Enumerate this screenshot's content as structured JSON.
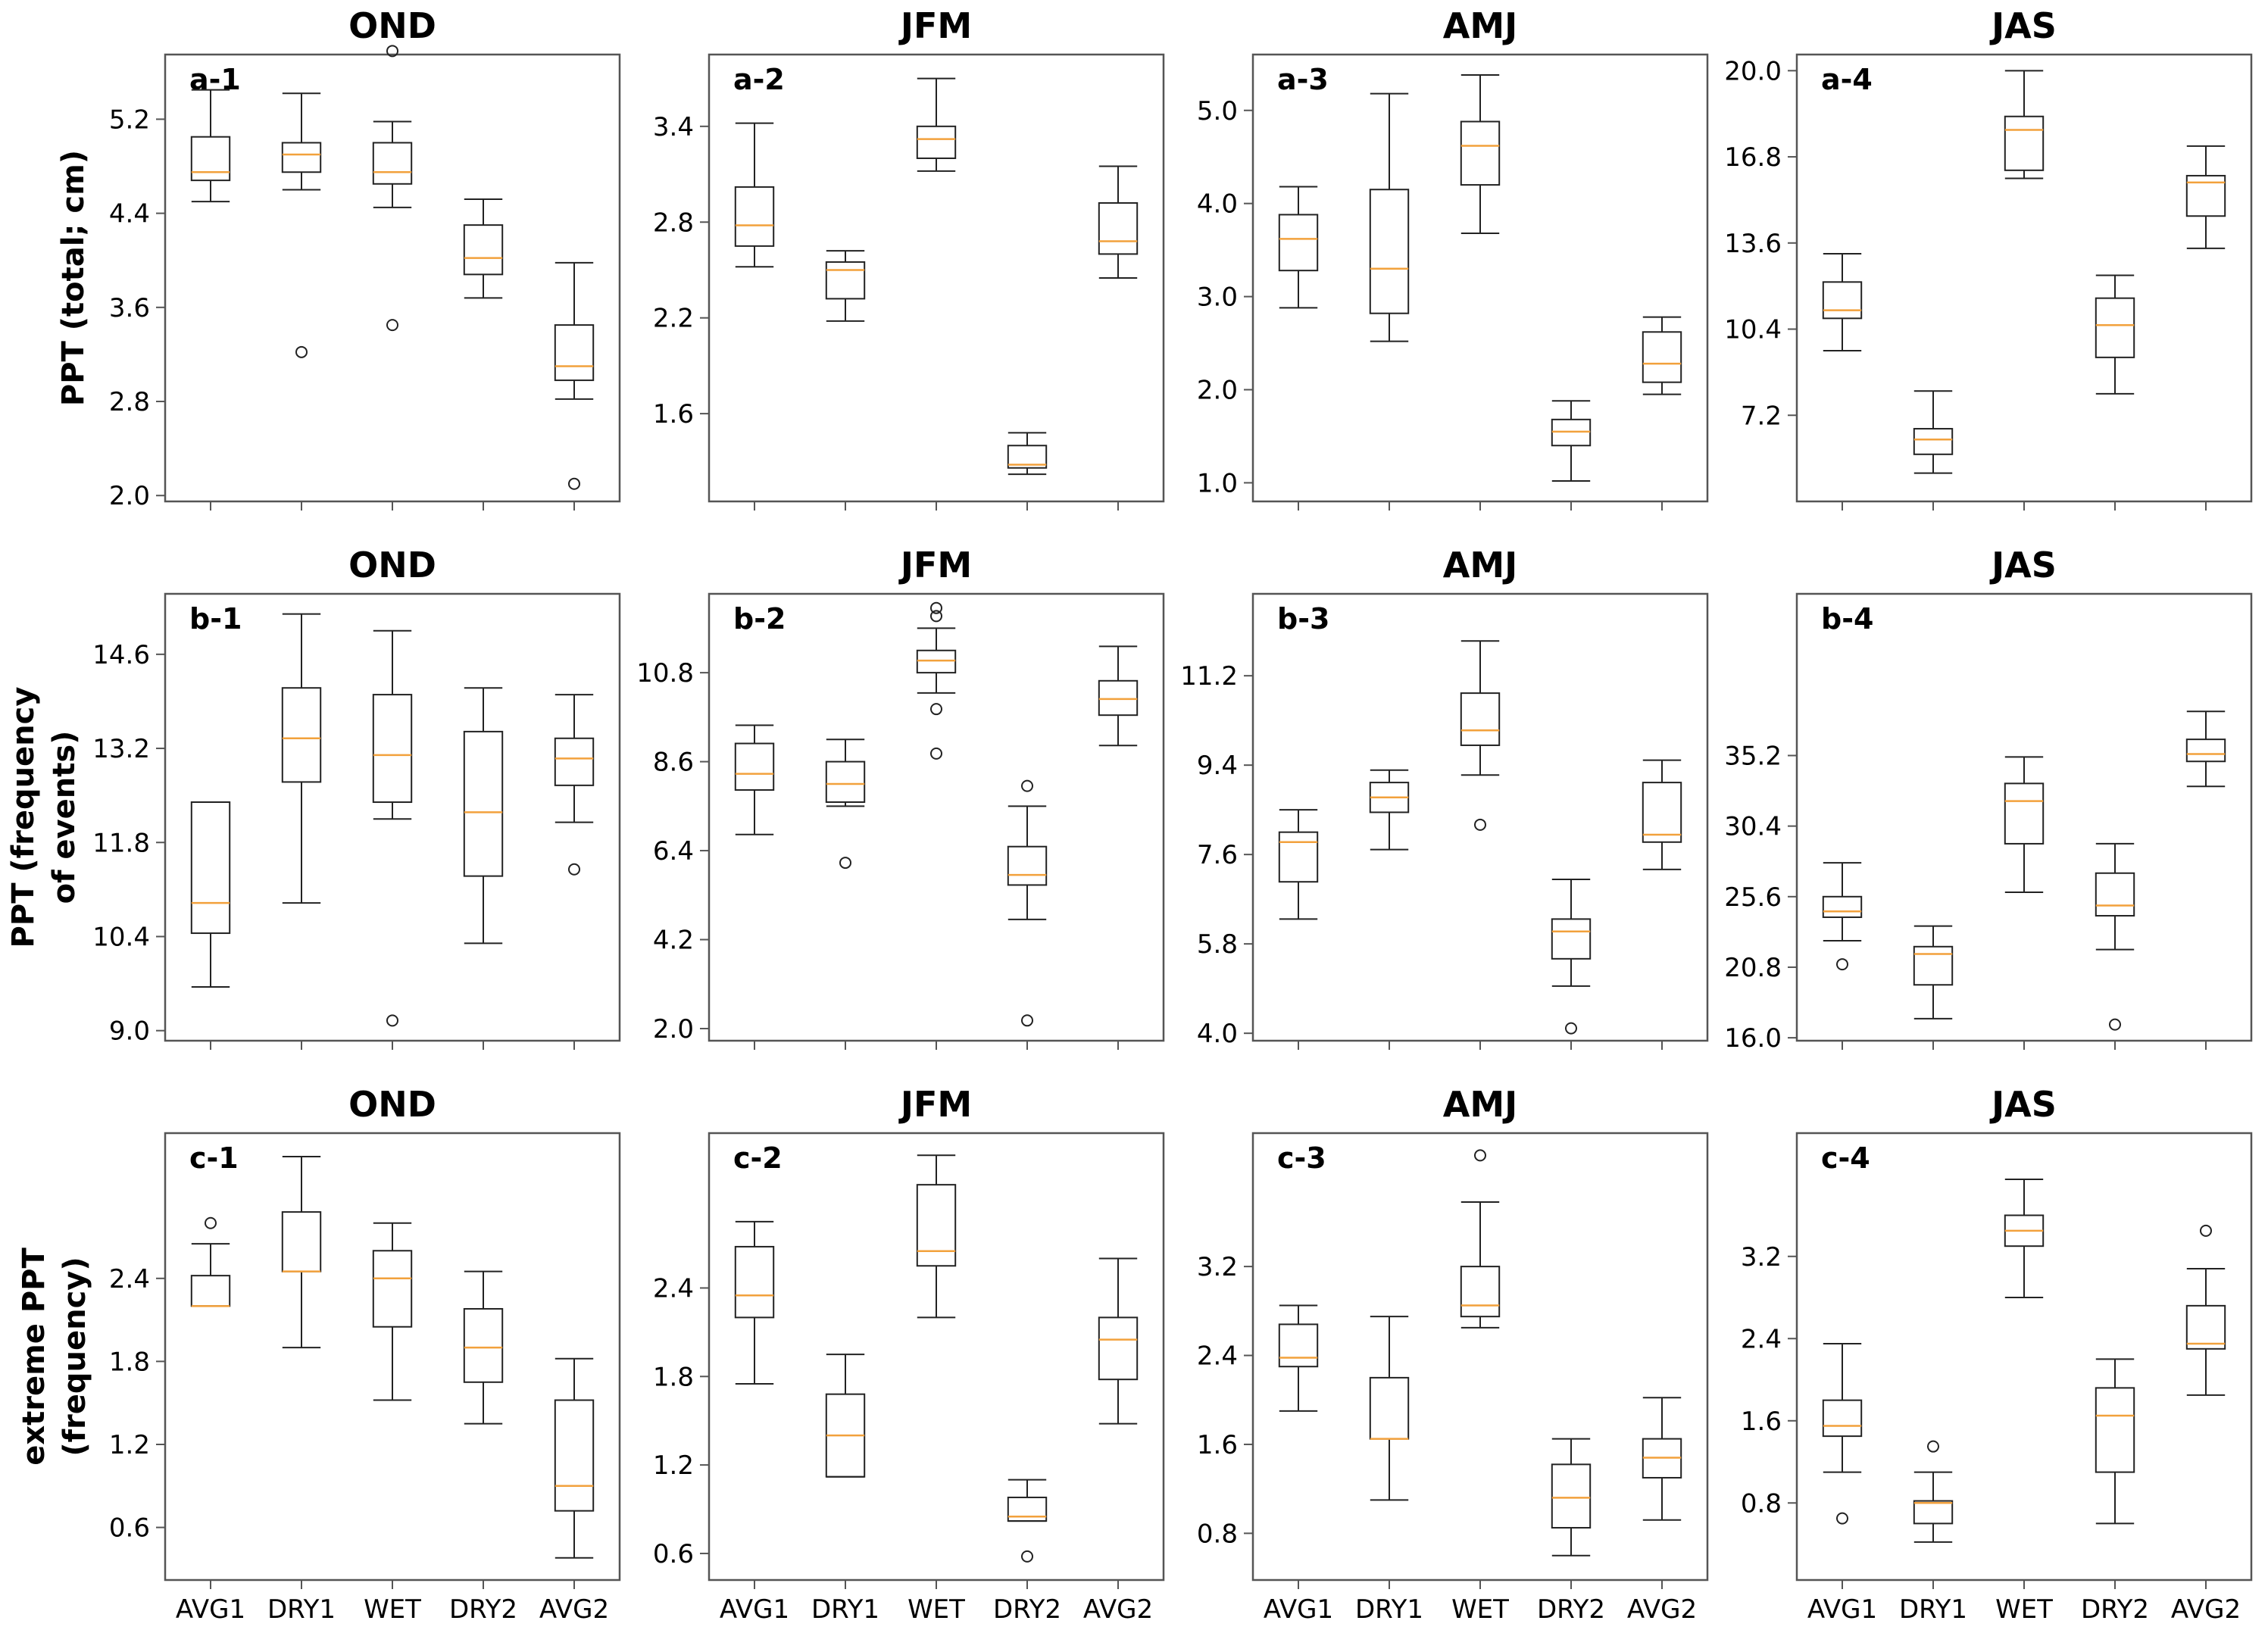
{
  "figure": {
    "row_labels": [
      [
        "PPT (total; cm)"
      ],
      [
        "PPT (frequency",
        "of events)"
      ],
      [
        "extreme PPT",
        "(frequency)"
      ]
    ]
  },
  "chart_data": [
    {
      "type": "box",
      "title": "OND",
      "panel": "a-1",
      "categories": [
        "AVG1",
        "DRY1",
        "WET",
        "DRY2",
        "AVG2"
      ],
      "ylim": [
        1.95,
        5.75
      ],
      "yticks": [
        2.0,
        2.8,
        3.6,
        4.4,
        5.2
      ],
      "show_xlabels": false,
      "boxes": [
        {
          "whislo": 4.5,
          "q1": 4.68,
          "med": 4.75,
          "q3": 5.05,
          "whishi": 5.45,
          "fliers": []
        },
        {
          "whislo": 4.6,
          "q1": 4.75,
          "med": 4.9,
          "q3": 5.0,
          "whishi": 5.42,
          "fliers": [
            3.22
          ]
        },
        {
          "whislo": 4.45,
          "q1": 4.65,
          "med": 4.75,
          "q3": 5.0,
          "whishi": 5.18,
          "fliers": [
            5.78,
            3.45
          ]
        },
        {
          "whislo": 3.68,
          "q1": 3.88,
          "med": 4.02,
          "q3": 4.3,
          "whishi": 4.52,
          "fliers": []
        },
        {
          "whislo": 2.82,
          "q1": 2.98,
          "med": 3.1,
          "q3": 3.45,
          "whishi": 3.98,
          "fliers": [
            2.1
          ]
        }
      ]
    },
    {
      "type": "box",
      "title": "JFM",
      "panel": "a-2",
      "categories": [
        "AVG1",
        "DRY1",
        "WET",
        "DRY2",
        "AVG2"
      ],
      "ylim": [
        1.05,
        3.85
      ],
      "yticks": [
        1.6,
        2.2,
        2.8,
        3.4
      ],
      "show_xlabels": false,
      "boxes": [
        {
          "whislo": 2.52,
          "q1": 2.65,
          "med": 2.78,
          "q3": 3.02,
          "whishi": 3.42,
          "fliers": []
        },
        {
          "whislo": 2.18,
          "q1": 2.32,
          "med": 2.5,
          "q3": 2.55,
          "whishi": 2.62,
          "fliers": []
        },
        {
          "whislo": 3.12,
          "q1": 3.2,
          "med": 3.32,
          "q3": 3.4,
          "whishi": 3.7,
          "fliers": []
        },
        {
          "whislo": 1.22,
          "q1": 1.26,
          "med": 1.28,
          "q3": 1.4,
          "whishi": 1.48,
          "fliers": []
        },
        {
          "whislo": 2.45,
          "q1": 2.6,
          "med": 2.68,
          "q3": 2.92,
          "whishi": 3.15,
          "fliers": []
        }
      ]
    },
    {
      "type": "box",
      "title": "AMJ",
      "panel": "a-3",
      "categories": [
        "AVG1",
        "DRY1",
        "WET",
        "DRY2",
        "AVG2"
      ],
      "ylim": [
        0.8,
        5.6
      ],
      "yticks": [
        1.0,
        2.0,
        3.0,
        4.0,
        5.0
      ],
      "show_xlabels": false,
      "boxes": [
        {
          "whislo": 2.88,
          "q1": 3.28,
          "med": 3.62,
          "q3": 3.88,
          "whishi": 4.18,
          "fliers": []
        },
        {
          "whislo": 2.52,
          "q1": 2.82,
          "med": 3.3,
          "q3": 4.15,
          "whishi": 5.18,
          "fliers": []
        },
        {
          "whislo": 3.68,
          "q1": 4.2,
          "med": 4.62,
          "q3": 4.88,
          "whishi": 5.38,
          "fliers": []
        },
        {
          "whislo": 1.02,
          "q1": 1.4,
          "med": 1.55,
          "q3": 1.68,
          "whishi": 1.88,
          "fliers": []
        },
        {
          "whislo": 1.95,
          "q1": 2.08,
          "med": 2.28,
          "q3": 2.62,
          "whishi": 2.78,
          "fliers": []
        }
      ]
    },
    {
      "type": "box",
      "title": "JAS",
      "panel": "a-4",
      "categories": [
        "AVG1",
        "DRY1",
        "WET",
        "DRY2",
        "AVG2"
      ],
      "ylim": [
        4.0,
        20.6
      ],
      "yticks": [
        7.2,
        10.4,
        13.6,
        16.8,
        20.0
      ],
      "show_xlabels": false,
      "boxes": [
        {
          "whislo": 9.6,
          "q1": 10.8,
          "med": 11.1,
          "q3": 12.15,
          "whishi": 13.2,
          "fliers": []
        },
        {
          "whislo": 5.05,
          "q1": 5.75,
          "med": 6.3,
          "q3": 6.7,
          "whishi": 8.1,
          "fliers": []
        },
        {
          "whislo": 16.0,
          "q1": 16.3,
          "med": 17.8,
          "q3": 18.3,
          "whishi": 20.0,
          "fliers": []
        },
        {
          "whislo": 8.0,
          "q1": 9.35,
          "med": 10.55,
          "q3": 11.55,
          "whishi": 12.4,
          "fliers": []
        },
        {
          "whislo": 13.4,
          "q1": 14.6,
          "med": 15.85,
          "q3": 16.1,
          "whishi": 17.2,
          "fliers": []
        }
      ]
    },
    {
      "type": "box",
      "title": "OND",
      "panel": "b-1",
      "categories": [
        "AVG1",
        "DRY1",
        "WET",
        "DRY2",
        "AVG2"
      ],
      "ylim": [
        8.85,
        15.5
      ],
      "yticks": [
        9.0,
        10.4,
        11.8,
        13.2,
        14.6
      ],
      "show_xlabels": false,
      "boxes": [
        {
          "whislo": 9.65,
          "q1": 10.45,
          "med": 10.9,
          "q3": 12.4,
          "whishi": 12.4,
          "fliers": []
        },
        {
          "whislo": 10.9,
          "q1": 12.7,
          "med": 13.35,
          "q3": 14.1,
          "whishi": 15.2,
          "fliers": []
        },
        {
          "whislo": 12.15,
          "q1": 12.4,
          "med": 13.1,
          "q3": 14.0,
          "whishi": 14.95,
          "fliers": [
            9.15
          ]
        },
        {
          "whislo": 10.3,
          "q1": 11.3,
          "med": 12.25,
          "q3": 13.45,
          "whishi": 14.1,
          "fliers": []
        },
        {
          "whislo": 12.1,
          "q1": 12.65,
          "med": 13.05,
          "q3": 13.35,
          "whishi": 14.0,
          "fliers": [
            11.4
          ]
        }
      ]
    },
    {
      "type": "box",
      "title": "JFM",
      "panel": "b-2",
      "categories": [
        "AVG1",
        "DRY1",
        "WET",
        "DRY2",
        "AVG2"
      ],
      "ylim": [
        1.7,
        12.75
      ],
      "yticks": [
        2.0,
        4.2,
        6.4,
        8.6,
        10.8
      ],
      "show_xlabels": false,
      "boxes": [
        {
          "whislo": 6.8,
          "q1": 7.9,
          "med": 8.3,
          "q3": 9.05,
          "whishi": 9.5,
          "fliers": []
        },
        {
          "whislo": 7.5,
          "q1": 7.6,
          "med": 8.05,
          "q3": 8.6,
          "whishi": 9.15,
          "fliers": [
            6.1
          ]
        },
        {
          "whislo": 10.3,
          "q1": 10.8,
          "med": 11.1,
          "q3": 11.35,
          "whishi": 11.9,
          "fliers": [
            12.4,
            12.2,
            9.9,
            8.8
          ]
        },
        {
          "whislo": 4.7,
          "q1": 5.55,
          "med": 5.8,
          "q3": 6.5,
          "whishi": 7.5,
          "fliers": [
            8.0,
            2.2
          ]
        },
        {
          "whislo": 9.0,
          "q1": 9.75,
          "med": 10.15,
          "q3": 10.6,
          "whishi": 11.45,
          "fliers": []
        }
      ]
    },
    {
      "type": "box",
      "title": "AMJ",
      "panel": "b-3",
      "categories": [
        "AVG1",
        "DRY1",
        "WET",
        "DRY2",
        "AVG2"
      ],
      "ylim": [
        3.85,
        12.85
      ],
      "yticks": [
        4.0,
        5.8,
        7.6,
        9.4,
        11.2
      ],
      "show_xlabels": false,
      "boxes": [
        {
          "whislo": 6.3,
          "q1": 7.05,
          "med": 7.85,
          "q3": 8.05,
          "whishi": 8.5,
          "fliers": []
        },
        {
          "whislo": 7.7,
          "q1": 8.45,
          "med": 8.75,
          "q3": 9.05,
          "whishi": 9.3,
          "fliers": []
        },
        {
          "whislo": 9.2,
          "q1": 9.8,
          "med": 10.1,
          "q3": 10.85,
          "whishi": 11.9,
          "fliers": [
            8.2
          ]
        },
        {
          "whislo": 4.95,
          "q1": 5.5,
          "med": 6.05,
          "q3": 6.3,
          "whishi": 7.1,
          "fliers": [
            4.1
          ]
        },
        {
          "whislo": 7.3,
          "q1": 7.85,
          "med": 8.0,
          "q3": 9.05,
          "whishi": 9.5,
          "fliers": []
        }
      ]
    },
    {
      "type": "box",
      "title": "JAS",
      "panel": "b-4",
      "categories": [
        "AVG1",
        "DRY1",
        "WET",
        "DRY2",
        "AVG2"
      ],
      "ylim": [
        15.8,
        46.2
      ],
      "yticks": [
        16.0,
        20.8,
        25.6,
        30.4,
        35.2
      ],
      "show_xlabels": false,
      "boxes": [
        {
          "whislo": 22.6,
          "q1": 24.2,
          "med": 24.6,
          "q3": 25.6,
          "whishi": 27.9,
          "fliers": [
            21.0
          ]
        },
        {
          "whislo": 17.3,
          "q1": 19.6,
          "med": 21.7,
          "q3": 22.2,
          "whishi": 23.6,
          "fliers": []
        },
        {
          "whislo": 25.9,
          "q1": 29.2,
          "med": 32.1,
          "q3": 33.3,
          "whishi": 35.1,
          "fliers": []
        },
        {
          "whislo": 22.0,
          "q1": 24.3,
          "med": 25.0,
          "q3": 27.2,
          "whishi": 29.2,
          "fliers": [
            16.9
          ]
        },
        {
          "whislo": 33.1,
          "q1": 34.8,
          "med": 35.3,
          "q3": 36.3,
          "whishi": 38.2,
          "fliers": []
        }
      ]
    },
    {
      "type": "box",
      "title": "OND",
      "panel": "c-1",
      "categories": [
        "AVG1",
        "DRY1",
        "WET",
        "DRY2",
        "AVG2"
      ],
      "ylim": [
        0.22,
        3.45
      ],
      "yticks": [
        0.6,
        1.2,
        1.8,
        2.4
      ],
      "show_xlabels": true,
      "boxes": [
        {
          "whislo": 2.2,
          "q1": 2.2,
          "med": 2.2,
          "q3": 2.42,
          "whishi": 2.65,
          "fliers": [
            2.8
          ]
        },
        {
          "whislo": 1.9,
          "q1": 2.45,
          "med": 2.45,
          "q3": 2.88,
          "whishi": 3.28,
          "fliers": []
        },
        {
          "whislo": 1.52,
          "q1": 2.05,
          "med": 2.4,
          "q3": 2.6,
          "whishi": 2.8,
          "fliers": []
        },
        {
          "whislo": 1.35,
          "q1": 1.65,
          "med": 1.9,
          "q3": 2.18,
          "whishi": 2.45,
          "fliers": []
        },
        {
          "whislo": 0.38,
          "q1": 0.72,
          "med": 0.9,
          "q3": 1.52,
          "whishi": 1.82,
          "fliers": []
        }
      ]
    },
    {
      "type": "box",
      "title": "JFM",
      "panel": "c-2",
      "categories": [
        "AVG1",
        "DRY1",
        "WET",
        "DRY2",
        "AVG2"
      ],
      "ylim": [
        0.42,
        3.45
      ],
      "yticks": [
        0.6,
        1.2,
        1.8,
        2.4
      ],
      "show_xlabels": true,
      "boxes": [
        {
          "whislo": 1.75,
          "q1": 2.2,
          "med": 2.35,
          "q3": 2.68,
          "whishi": 2.85,
          "fliers": []
        },
        {
          "whislo": 1.12,
          "q1": 1.12,
          "med": 1.4,
          "q3": 1.68,
          "whishi": 1.95,
          "fliers": []
        },
        {
          "whislo": 2.2,
          "q1": 2.55,
          "med": 2.65,
          "q3": 3.1,
          "whishi": 3.3,
          "fliers": []
        },
        {
          "whislo": 0.82,
          "q1": 0.82,
          "med": 0.85,
          "q3": 0.98,
          "whishi": 1.1,
          "fliers": [
            0.58
          ]
        },
        {
          "whislo": 1.48,
          "q1": 1.78,
          "med": 2.05,
          "q3": 2.2,
          "whishi": 2.6,
          "fliers": []
        }
      ]
    },
    {
      "type": "box",
      "title": "AMJ",
      "panel": "c-3",
      "categories": [
        "AVG1",
        "DRY1",
        "WET",
        "DRY2",
        "AVG2"
      ],
      "ylim": [
        0.38,
        4.4
      ],
      "yticks": [
        0.8,
        1.6,
        2.4,
        3.2
      ],
      "show_xlabels": true,
      "boxes": [
        {
          "whislo": 1.9,
          "q1": 2.3,
          "med": 2.38,
          "q3": 2.68,
          "whishi": 2.85,
          "fliers": []
        },
        {
          "whislo": 1.1,
          "q1": 1.65,
          "med": 1.65,
          "q3": 2.2,
          "whishi": 2.75,
          "fliers": []
        },
        {
          "whislo": 2.65,
          "q1": 2.75,
          "med": 2.85,
          "q3": 3.2,
          "whishi": 3.78,
          "fliers": [
            4.2
          ]
        },
        {
          "whislo": 0.6,
          "q1": 0.85,
          "med": 1.12,
          "q3": 1.42,
          "whishi": 1.65,
          "fliers": []
        },
        {
          "whislo": 0.92,
          "q1": 1.3,
          "med": 1.48,
          "q3": 1.65,
          "whishi": 2.02,
          "fliers": []
        }
      ]
    },
    {
      "type": "box",
      "title": "JAS",
      "panel": "c-4",
      "categories": [
        "AVG1",
        "DRY1",
        "WET",
        "DRY2",
        "AVG2"
      ],
      "ylim": [
        0.05,
        4.4
      ],
      "yticks": [
        0.8,
        1.6,
        2.4,
        3.2
      ],
      "show_xlabels": true,
      "boxes": [
        {
          "whislo": 1.1,
          "q1": 1.45,
          "med": 1.55,
          "q3": 1.8,
          "whishi": 2.35,
          "fliers": [
            0.65
          ]
        },
        {
          "whislo": 0.42,
          "q1": 0.6,
          "med": 0.8,
          "q3": 0.82,
          "whishi": 1.1,
          "fliers": [
            1.35
          ]
        },
        {
          "whislo": 2.8,
          "q1": 3.3,
          "med": 3.45,
          "q3": 3.6,
          "whishi": 3.95,
          "fliers": []
        },
        {
          "whislo": 0.6,
          "q1": 1.1,
          "med": 1.65,
          "q3": 1.92,
          "whishi": 2.2,
          "fliers": []
        },
        {
          "whislo": 1.85,
          "q1": 2.3,
          "med": 2.35,
          "q3": 2.72,
          "whishi": 3.08,
          "fliers": [
            3.45
          ]
        }
      ]
    }
  ],
  "colors": {
    "frame": "#555555",
    "box": "#222222",
    "median": "#f2a13c",
    "flier": "#222222",
    "text": "#000000"
  }
}
